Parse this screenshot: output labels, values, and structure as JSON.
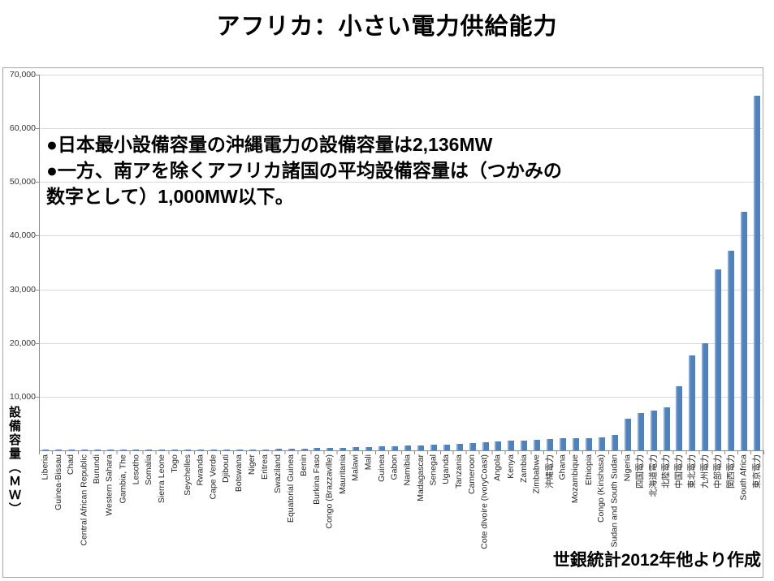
{
  "title": "アフリカ：小さい電力供給能力",
  "annotation": {
    "line1": "●日本最小設備容量の沖縄電力の設備容量は2,136MW",
    "line2": "●一方、南アを除くアフリカ諸国の平均設備容量は（つかみの",
    "line3": "数字として）1,000MW以下。"
  },
  "source_note": "世銀統計2012年他より作成",
  "y_axis_title": "設備容量（ＭＷ）",
  "colors": {
    "bar": "#4F81BD",
    "bar_highlight": "#7EA4D2",
    "gridline": "#D9D9D9",
    "axis": "#8C8C8C",
    "frame": "#A6A6A6",
    "tick_text": "#262626"
  },
  "chart_data": {
    "type": "bar",
    "title": "アフリカ：小さい電力供給能力",
    "ylabel": "設備容量（ＭＷ）",
    "xlabel": "",
    "ylim": [
      0,
      70000
    ],
    "ytick_interval": 10000,
    "ytick_labels": [
      "10,000",
      "20,000",
      "30,000",
      "40,000",
      "50,000",
      "60,000",
      "70,000"
    ],
    "grid": true,
    "legend": false,
    "categories": [
      "Liberia",
      "Guinea-Bissau",
      "Chad",
      "Central African Republic",
      "Burundi",
      "Western Sahara",
      "Gambia, The",
      "Lesotho",
      "Somalia",
      "Sierra Leone",
      "Togo",
      "Seychelles",
      "Rwanda",
      "Cape Verde",
      "Djibouti",
      "Botswana",
      "Niger",
      "Eritrea",
      "Swaziland",
      "Equatorial Guinea",
      "Benin",
      "Burkina Faso",
      "Congo (Brazzaville)",
      "Mauritania",
      "Malawi",
      "Mali",
      "Guinea",
      "Gabon",
      "Namibia",
      "Madagascar",
      "Senegal",
      "Uganda",
      "Tanzania",
      "Cameroon",
      "Cote dIvoire (IvoryCoast)",
      "Angola",
      "Kenya",
      "Zambia",
      "Zimbabwe",
      "沖縄電力",
      "Ghana",
      "Mozambique",
      "Ethiopia",
      "Congo (Kinshasa)",
      "Sudan and South Sudan",
      "Nigeria",
      "四国電力",
      "北海道電力",
      "北陸電力",
      "中国電力",
      "東北電力",
      "九州電力",
      "中部電力",
      "関西電力",
      "South Africa",
      "東京電力"
    ],
    "values": [
      20,
      30,
      40,
      45,
      55,
      60,
      70,
      75,
      80,
      90,
      100,
      110,
      120,
      140,
      160,
      180,
      200,
      220,
      250,
      280,
      320,
      400,
      450,
      500,
      550,
      600,
      700,
      800,
      850,
      900,
      1000,
      1100,
      1250,
      1400,
      1550,
      1700,
      1760,
      1850,
      2000,
      2136,
      2200,
      2250,
      2300,
      2450,
      2900,
      5900,
      6900,
      7400,
      8000,
      11900,
      17700,
      20000,
      33700,
      37200,
      44400,
      66000
    ]
  }
}
